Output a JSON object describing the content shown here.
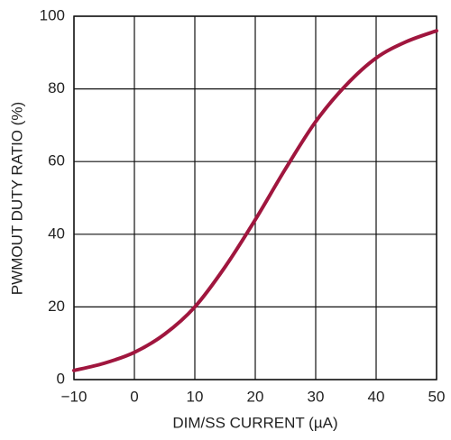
{
  "chart_data": {
    "type": "line",
    "x_label": "DIM/SS CURRENT (µA)",
    "y_label": "PWMOUT DUTY RATIO (%)",
    "x": [
      -10,
      -5,
      0,
      5,
      10,
      15,
      20,
      25,
      30,
      35,
      40,
      45,
      50
    ],
    "values": [
      2.5,
      4.5,
      7.5,
      12.5,
      20,
      31,
      44,
      58,
      71,
      81,
      88.5,
      93,
      96
    ],
    "color": "#a0163e",
    "xlim": [
      -10,
      50
    ],
    "ylim": [
      0,
      100
    ],
    "xticks": [
      {
        "value": -10,
        "label": "−10"
      },
      0,
      10,
      20,
      30,
      40,
      50
    ],
    "yticks": [
      0,
      20,
      40,
      60,
      80,
      100
    ],
    "grid": true
  }
}
